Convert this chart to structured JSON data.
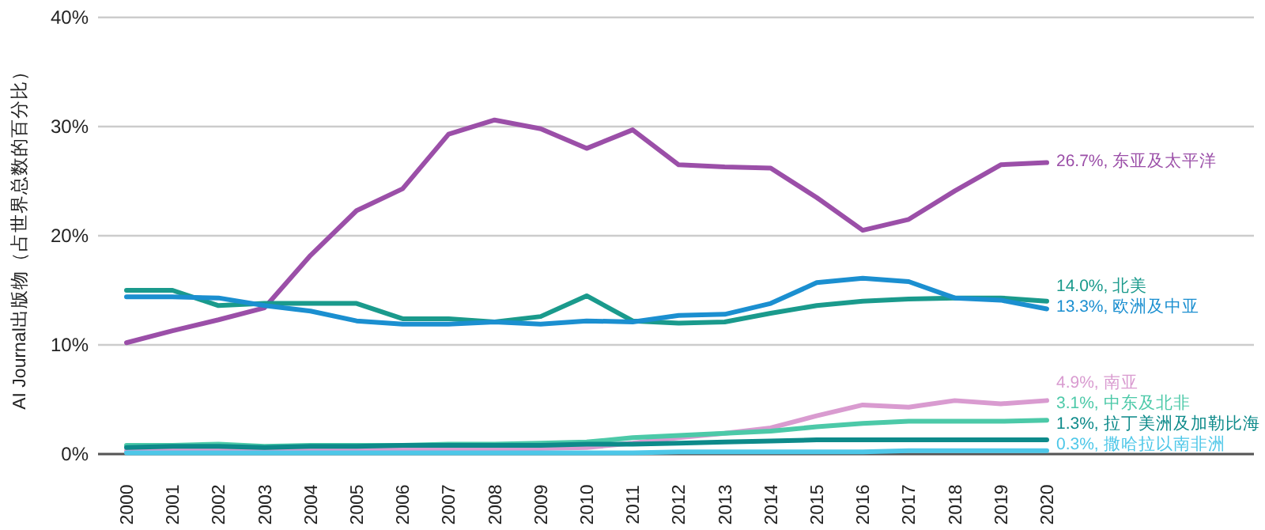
{
  "chart_data": {
    "type": "line",
    "ylabel": "AI Journal出版物（占世界总数的百分比）",
    "categories": [
      "2000",
      "2001",
      "2002",
      "2003",
      "2004",
      "2005",
      "2006",
      "2007",
      "2008",
      "2009",
      "2010",
      "2011",
      "2012",
      "2013",
      "2014",
      "2015",
      "2016",
      "2017",
      "2018",
      "2019",
      "2020"
    ],
    "ylim": [
      0,
      40
    ],
    "yticks": [
      {
        "value": 0,
        "label": "0%"
      },
      {
        "value": 10,
        "label": "10%"
      },
      {
        "value": 20,
        "label": "20%"
      },
      {
        "value": 30,
        "label": "30%"
      },
      {
        "value": 40,
        "label": "40%"
      }
    ],
    "grid": "y",
    "marker": "none",
    "line_style": "solid",
    "series": [
      {
        "name": "26.7%, 东亚及太平洋",
        "color": "#9b4fa8",
        "values": [
          10.2,
          11.3,
          12.3,
          13.4,
          18.2,
          22.3,
          24.3,
          29.3,
          30.6,
          29.8,
          28.0,
          29.7,
          26.5,
          26.3,
          26.2,
          23.5,
          20.5,
          21.5,
          24.1,
          26.5,
          26.7
        ]
      },
      {
        "name": "14.0%, 北美",
        "color": "#1a9a8c",
        "values": [
          15.0,
          15.0,
          13.6,
          13.8,
          13.8,
          13.8,
          12.4,
          12.4,
          12.1,
          12.6,
          14.5,
          12.2,
          12.0,
          12.1,
          12.9,
          13.6,
          14.0,
          14.2,
          14.3,
          14.3,
          14.0
        ]
      },
      {
        "name": "13.3%, 欧洲及中亚",
        "color": "#1b8fd0",
        "values": [
          14.4,
          14.4,
          14.3,
          13.6,
          13.1,
          12.2,
          11.9,
          11.9,
          12.1,
          11.9,
          12.2,
          12.1,
          12.7,
          12.8,
          13.8,
          15.7,
          16.1,
          15.8,
          14.3,
          14.1,
          13.3
        ]
      },
      {
        "name": "4.9%, 南亚",
        "color": "#d99bd0",
        "values": [
          0.3,
          0.3,
          0.3,
          0.4,
          0.4,
          0.4,
          0.5,
          0.5,
          0.5,
          0.5,
          0.6,
          1.0,
          1.5,
          1.9,
          2.4,
          3.5,
          4.5,
          4.3,
          4.9,
          4.6,
          4.9
        ]
      },
      {
        "name": "3.1%, 中东及北非",
        "color": "#4cc9a8",
        "values": [
          0.8,
          0.8,
          0.9,
          0.7,
          0.8,
          0.8,
          0.8,
          0.9,
          0.9,
          1.0,
          1.1,
          1.5,
          1.7,
          1.9,
          2.1,
          2.5,
          2.8,
          3.0,
          3.0,
          3.0,
          3.1
        ]
      },
      {
        "name": "1.3%, 拉丁美洲及加勒比海",
        "color": "#0d8a8a",
        "values": [
          0.6,
          0.7,
          0.7,
          0.6,
          0.7,
          0.7,
          0.8,
          0.8,
          0.8,
          0.8,
          0.9,
          0.9,
          1.0,
          1.1,
          1.2,
          1.3,
          1.3,
          1.3,
          1.3,
          1.3,
          1.3
        ]
      },
      {
        "name": "0.3%, 撒哈拉以南非洲",
        "color": "#4dc7e8",
        "values": [
          0.1,
          0.1,
          0.1,
          0.1,
          0.1,
          0.1,
          0.1,
          0.1,
          0.1,
          0.1,
          0.1,
          0.1,
          0.2,
          0.2,
          0.2,
          0.2,
          0.2,
          0.3,
          0.3,
          0.3,
          0.3
        ]
      }
    ]
  }
}
